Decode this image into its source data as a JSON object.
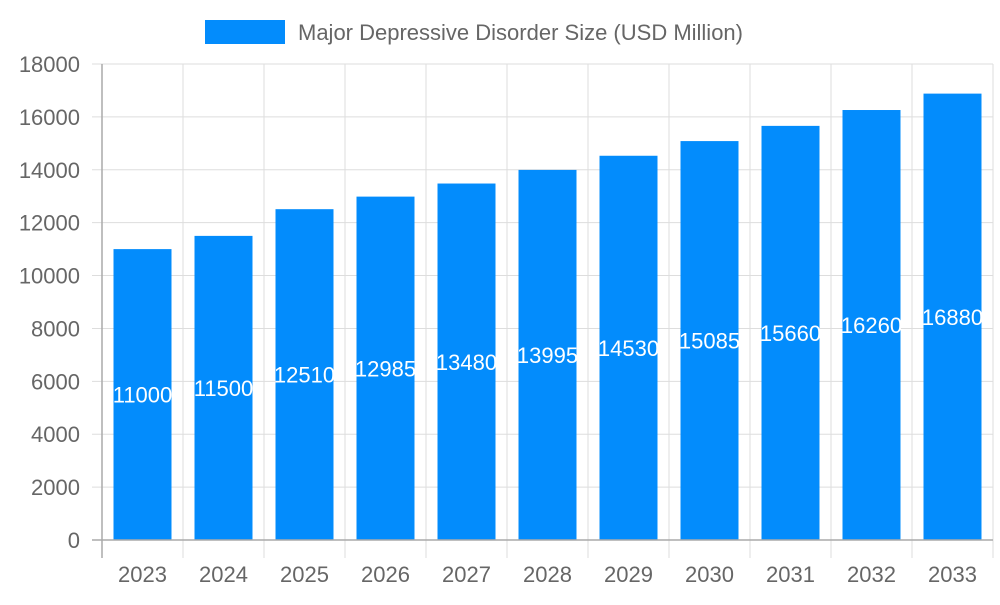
{
  "chart_data": {
    "type": "bar",
    "title": "",
    "xlabel": "",
    "ylabel": "",
    "categories": [
      "2023",
      "2024",
      "2025",
      "2026",
      "2027",
      "2028",
      "2029",
      "2030",
      "2031",
      "2032",
      "2033"
    ],
    "series": [
      {
        "name": "Major Depressive Disorder Size (USD Million)",
        "values": [
          11000,
          11500,
          12510,
          12985,
          13480,
          13995,
          14530,
          15085,
          15660,
          16260,
          16880
        ],
        "color": "#038cfc"
      }
    ],
    "ylim": [
      0,
      18000
    ],
    "yticks": [
      "0",
      "2000",
      "4000",
      "6000",
      "8000",
      "10000",
      "12000",
      "14000",
      "16000",
      "18000"
    ],
    "grid": true,
    "legend_position": "top-center",
    "data_labels": true
  }
}
